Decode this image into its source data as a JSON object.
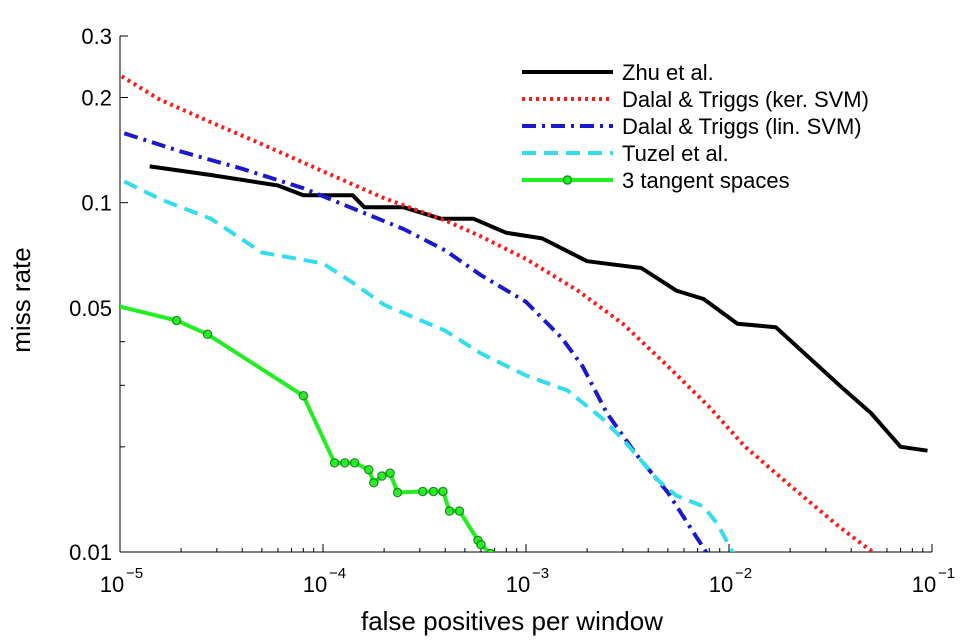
{
  "chart_data": {
    "type": "line",
    "title": "",
    "xlabel": "false positives per window",
    "ylabel": "miss rate",
    "xscale": "log",
    "yscale": "log",
    "xlim": [
      1e-05,
      0.1
    ],
    "ylim": [
      0.01,
      0.3
    ],
    "grid": false,
    "legend_position": "top-right",
    "x_ticks": [
      {
        "value": 1e-05,
        "base": "10",
        "exp": "−5"
      },
      {
        "value": 0.0001,
        "base": "10",
        "exp": "−4"
      },
      {
        "value": 0.001,
        "base": "10",
        "exp": "−3"
      },
      {
        "value": 0.01,
        "base": "10",
        "exp": "−2"
      },
      {
        "value": 0.1,
        "base": "10",
        "exp": "−1"
      }
    ],
    "y_ticks": [
      {
        "value": 0.01,
        "label": "0.01"
      },
      {
        "value": 0.05,
        "label": "0.05"
      },
      {
        "value": 0.1,
        "label": "0.1"
      },
      {
        "value": 0.2,
        "label": "0.2"
      },
      {
        "value": 0.3,
        "label": "0.3"
      }
    ],
    "y_minor_ticks": [
      0.02,
      0.03,
      0.04
    ],
    "series": [
      {
        "name": "Zhu et al.",
        "color": "#000000",
        "style": "solid",
        "marker": "none",
        "points": [
          [
            1.4e-05,
            0.127
          ],
          [
            2.8e-05,
            0.12
          ],
          [
            6e-05,
            0.112
          ],
          [
            8e-05,
            0.105
          ],
          [
            0.00014,
            0.105
          ],
          [
            0.00016,
            0.097
          ],
          [
            0.00025,
            0.097
          ],
          [
            0.00038,
            0.09
          ],
          [
            0.00055,
            0.09
          ],
          [
            0.0008,
            0.082
          ],
          [
            0.0012,
            0.079
          ],
          [
            0.002,
            0.068
          ],
          [
            0.0037,
            0.065
          ],
          [
            0.0055,
            0.056
          ],
          [
            0.0075,
            0.053
          ],
          [
            0.011,
            0.045
          ],
          [
            0.017,
            0.044
          ],
          [
            0.035,
            0.03
          ],
          [
            0.05,
            0.025
          ],
          [
            0.07,
            0.02
          ],
          [
            0.095,
            0.0195
          ]
        ]
      },
      {
        "name": "Dalal & Triggs (ker. SVM)",
        "color": "#ff1a1a",
        "style": "dotted",
        "marker": "none",
        "points": [
          [
            1.02e-05,
            0.23
          ],
          [
            1.55e-05,
            0.198
          ],
          [
            2.8e-05,
            0.17
          ],
          [
            5e-05,
            0.147
          ],
          [
            0.0001,
            0.123
          ],
          [
            0.0002,
            0.103
          ],
          [
            0.0004,
            0.089
          ],
          [
            0.0006,
            0.08
          ],
          [
            0.001,
            0.069
          ],
          [
            0.0018,
            0.056
          ],
          [
            0.003,
            0.045
          ],
          [
            0.005,
            0.034
          ],
          [
            0.008,
            0.026
          ],
          [
            0.012,
            0.02
          ],
          [
            0.02,
            0.0155
          ],
          [
            0.035,
            0.0118
          ],
          [
            0.052,
            0.0099
          ]
        ]
      },
      {
        "name": "Dalal & Triggs (lin. SVM)",
        "color": "#1a1acc",
        "style": "dashdot",
        "marker": "none",
        "points": [
          [
            1.05e-05,
            0.158
          ],
          [
            2e-05,
            0.14
          ],
          [
            4e-05,
            0.125
          ],
          [
            8e-05,
            0.11
          ],
          [
            0.00013,
            0.098
          ],
          [
            0.00025,
            0.084
          ],
          [
            0.0004,
            0.073
          ],
          [
            0.0006,
            0.062
          ],
          [
            0.001,
            0.052
          ],
          [
            0.0015,
            0.041
          ],
          [
            0.0019,
            0.034
          ],
          [
            0.0025,
            0.025
          ],
          [
            0.0035,
            0.019
          ],
          [
            0.005,
            0.0148
          ],
          [
            0.0068,
            0.0112
          ],
          [
            0.0078,
            0.0099
          ]
        ]
      },
      {
        "name": "Tuzel et al.",
        "color": "#33ddee",
        "style": "dashed",
        "marker": "none",
        "points": [
          [
            1.05e-05,
            0.115
          ],
          [
            1.6e-05,
            0.102
          ],
          [
            2.8e-05,
            0.09
          ],
          [
            5e-05,
            0.072
          ],
          [
            0.0001,
            0.067
          ],
          [
            0.00014,
            0.059
          ],
          [
            0.0002,
            0.051
          ],
          [
            0.0004,
            0.043
          ],
          [
            0.0006,
            0.037
          ],
          [
            0.001,
            0.032
          ],
          [
            0.0016,
            0.029
          ],
          [
            0.0024,
            0.024
          ],
          [
            0.003,
            0.021
          ],
          [
            0.0045,
            0.016
          ],
          [
            0.0055,
            0.0145
          ],
          [
            0.0075,
            0.0135
          ],
          [
            0.0088,
            0.012
          ],
          [
            0.0105,
            0.0099
          ]
        ]
      },
      {
        "name": "3 tangent spaces",
        "color": "#22ee22",
        "style": "solid",
        "marker": "circle",
        "points": [
          [
            9.2e-06,
            0.051
          ],
          [
            1.9e-05,
            0.046
          ],
          [
            2.7e-05,
            0.042
          ],
          [
            8e-05,
            0.028
          ],
          [
            0.000114,
            0.018
          ],
          [
            0.000128,
            0.018
          ],
          [
            0.000143,
            0.018
          ],
          [
            0.000168,
            0.0172
          ],
          [
            0.000178,
            0.0158
          ],
          [
            0.000195,
            0.0165
          ],
          [
            0.000214,
            0.0168
          ],
          [
            0.000233,
            0.0148
          ],
          [
            0.00031,
            0.0149
          ],
          [
            0.00035,
            0.0149
          ],
          [
            0.00039,
            0.0149
          ],
          [
            0.00042,
            0.0131
          ],
          [
            0.00047,
            0.0131
          ],
          [
            0.00058,
            0.0108
          ],
          [
            0.0006,
            0.0105
          ],
          [
            0.00067,
            0.0099
          ]
        ]
      }
    ]
  }
}
